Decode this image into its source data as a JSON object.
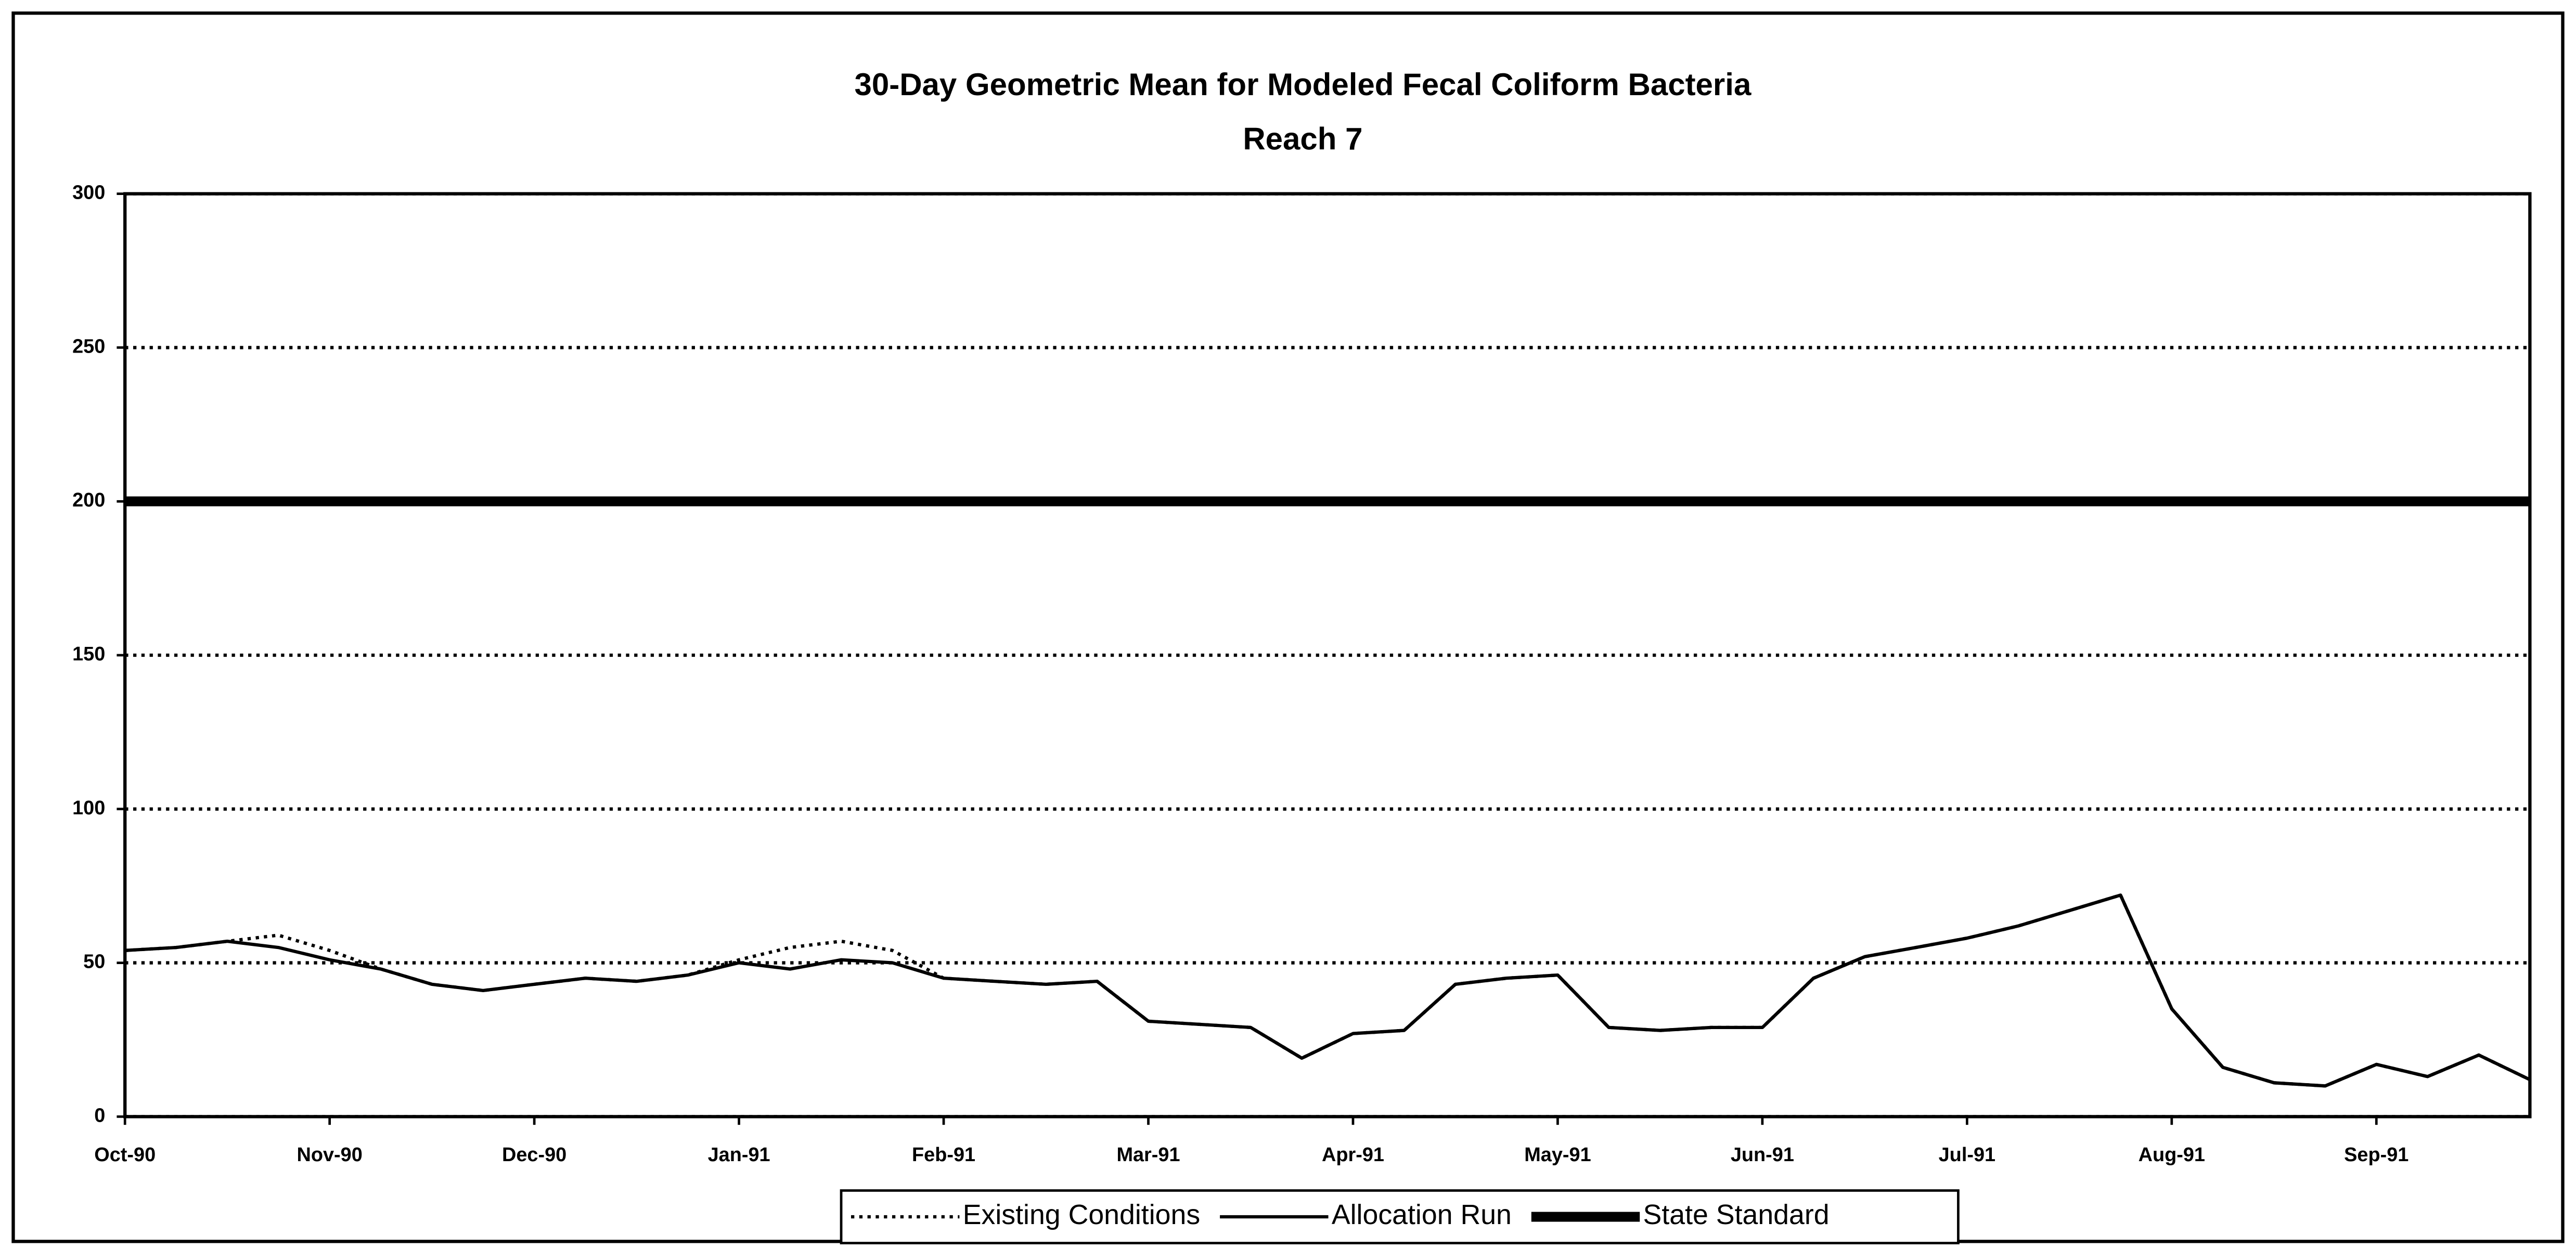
{
  "chart_data": {
    "type": "line",
    "title": "30-Day Geometric Mean for Modeled Fecal Coliform Bacteria",
    "subtitle": "Reach 7",
    "categories": [
      "Oct-90",
      null,
      null,
      null,
      "Nov-90",
      null,
      null,
      null,
      "Dec-90",
      null,
      null,
      null,
      "Jan-91",
      null,
      null,
      null,
      "Feb-91",
      null,
      null,
      null,
      "Mar-91",
      null,
      null,
      null,
      "Apr-91",
      null,
      null,
      null,
      "May-91",
      null,
      null,
      null,
      "Jun-91",
      null,
      null,
      null,
      "Jul-91",
      null,
      null,
      null,
      "Aug-91",
      null,
      null,
      null,
      "Sep-91",
      null,
      null,
      null
    ],
    "series": [
      {
        "name": "Existing Conditions",
        "color": "#000000",
        "dash": "dotted",
        "values": [
          54,
          55,
          57,
          59,
          54,
          48,
          43,
          41,
          43,
          45,
          44,
          46,
          51,
          55,
          57,
          54,
          45,
          44,
          43,
          44,
          31,
          30,
          29,
          19,
          27,
          28,
          43,
          45,
          46,
          29,
          28,
          29,
          29,
          45,
          52,
          55,
          58,
          62,
          67,
          72,
          35,
          16,
          11,
          10,
          17,
          13,
          20,
          12
        ]
      },
      {
        "name": "Allocation Run",
        "color": "#000000",
        "dash": "solid",
        "values": [
          54,
          55,
          57,
          55,
          51,
          48,
          43,
          41,
          43,
          45,
          44,
          46,
          50,
          48,
          51,
          50,
          45,
          44,
          43,
          44,
          31,
          30,
          29,
          19,
          27,
          28,
          43,
          45,
          46,
          29,
          28,
          29,
          29,
          45,
          52,
          55,
          58,
          62,
          67,
          72,
          35,
          16,
          11,
          10,
          17,
          13,
          20,
          12
        ]
      },
      {
        "name": "State Standard",
        "color": "#000000",
        "dash": "thick",
        "values": [
          200,
          200,
          200,
          200,
          200,
          200,
          200,
          200,
          200,
          200,
          200,
          200,
          200,
          200,
          200,
          200,
          200,
          200,
          200,
          200,
          200,
          200,
          200,
          200,
          200,
          200,
          200,
          200,
          200,
          200,
          200,
          200,
          200,
          200,
          200,
          200,
          200,
          200,
          200,
          200,
          200,
          200,
          200,
          200,
          200,
          200,
          200,
          200
        ]
      }
    ],
    "ylim": [
      0,
      300
    ],
    "yticks": [
      0,
      50,
      100,
      150,
      200,
      250,
      300
    ],
    "grid": true,
    "legend": "bottom"
  }
}
